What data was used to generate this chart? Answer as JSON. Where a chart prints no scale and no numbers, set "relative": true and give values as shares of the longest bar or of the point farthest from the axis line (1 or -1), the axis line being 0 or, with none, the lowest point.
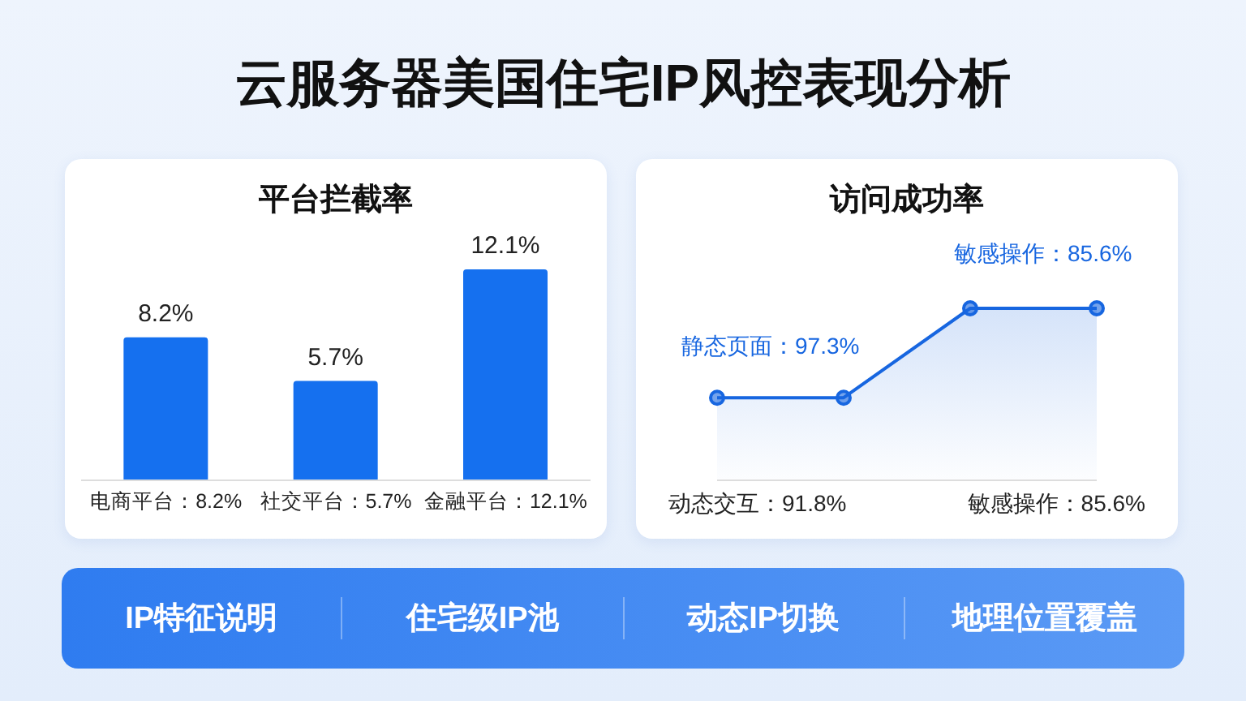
{
  "chart_data": [
    {
      "type": "bar",
      "title": "云服务器美国住宅IP风控表现分析",
      "subtitle": "平台拦截率",
      "categories": [
        "电商平台：8.2%",
        "社交平台：5.7%",
        "金融平台：12.1%"
      ],
      "values": [
        8.2,
        5.7,
        12.1
      ],
      "value_labels": [
        "8.2%",
        "5.7%",
        "12.1%"
      ],
      "color": "#1570ef",
      "grid": false,
      "legend": false
    },
    {
      "type": "area",
      "title": "访问成功率",
      "categories": [
        null,
        null,
        null,
        null
      ],
      "relative": true,
      "values": [
        0.48,
        0.48,
        1,
        1
      ],
      "color": "#1766e0",
      "marker": "circle",
      "annotations": [
        "静态页面：97.3%",
        "敏感操作：85.6%",
        "动态交互：91.8%",
        "敏感操作：85.6%"
      ],
      "grid": false,
      "legend": false
    },
    {
      "type": "other",
      "annotations": [
        "IP特征说明",
        "住宅级IP池",
        "动态IP切换",
        "地理位置覆盖"
      ]
    }
  ]
}
